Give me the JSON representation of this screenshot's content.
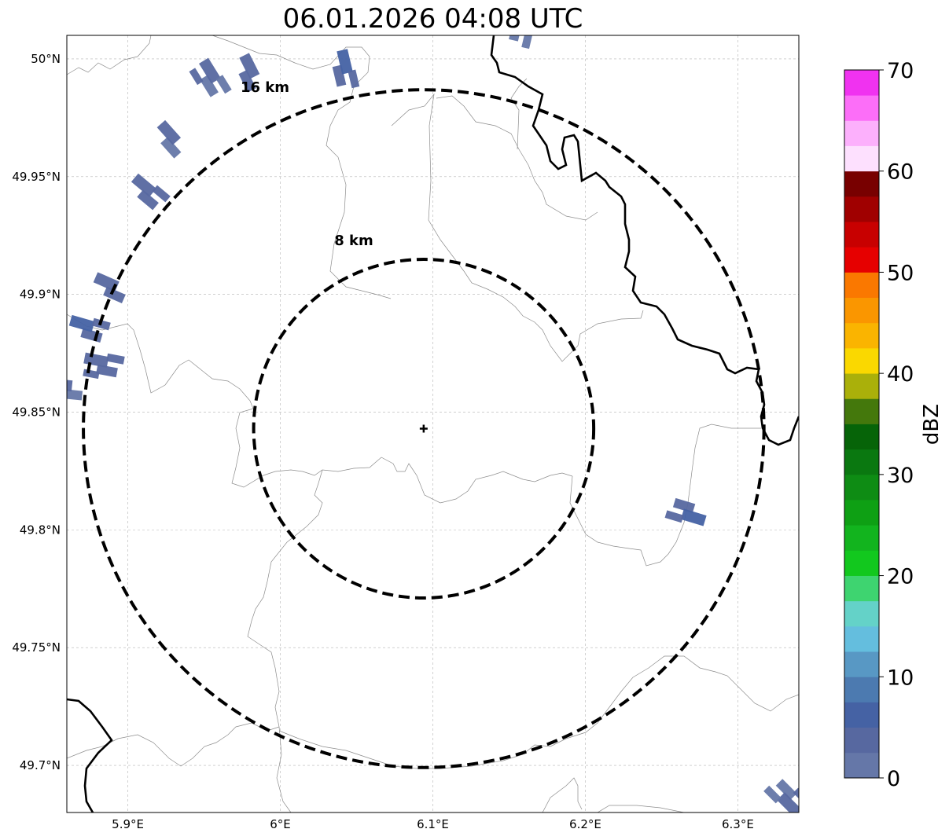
{
  "title": "06.01.2026 04:08 UTC",
  "map": {
    "lon_range": [
      5.86,
      6.34
    ],
    "lat_range": [
      49.68,
      50.01
    ],
    "lon_ticks": [
      {
        "value": 5.9,
        "label": "5.9°E"
      },
      {
        "value": 6.0,
        "label": "6°E"
      },
      {
        "value": 6.1,
        "label": "6.1°E"
      },
      {
        "value": 6.2,
        "label": "6.2°E"
      },
      {
        "value": 6.3,
        "label": "6.3°E"
      }
    ],
    "lat_ticks": [
      {
        "value": 50.0,
        "label": "50°N"
      },
      {
        "value": 49.95,
        "label": "49.95°N"
      },
      {
        "value": 49.9,
        "label": "49.9°N"
      },
      {
        "value": 49.85,
        "label": "49.85°N"
      },
      {
        "value": 49.8,
        "label": "49.8°N"
      },
      {
        "value": 49.75,
        "label": "49.75°N"
      },
      {
        "value": 49.7,
        "label": "49.7°N"
      }
    ],
    "center": {
      "lon": 6.094,
      "lat": 49.843
    },
    "range_rings": [
      {
        "label": "8 km",
        "radius_lat_deg": 0.0719
      },
      {
        "label": "16 km",
        "radius_lat_deg": 0.1439
      }
    ],
    "gridlines": true
  },
  "colorbar": {
    "label": "dBZ",
    "min": 0,
    "max": 70,
    "tick_labels": [
      "0",
      "10",
      "20",
      "30",
      "40",
      "50",
      "60",
      "70"
    ],
    "colors": [
      "#6577a8",
      "#5768a0",
      "#4562a4",
      "#4c7ab0",
      "#5898c4",
      "#64bede",
      "#64d2c8",
      "#3ed470",
      "#12c81e",
      "#12b41e",
      "#0ea014",
      "#0e8c14",
      "#0a7810",
      "#066408",
      "#44780c",
      "#aab00a",
      "#fad800",
      "#fab400",
      "#fa9600",
      "#fa7800",
      "#e60000",
      "#c80000",
      "#a00000",
      "#780000",
      "#fde0fe",
      "#fcb0fc",
      "#fc6ef8",
      "#f032f0"
    ]
  },
  "echoes": [
    {
      "lon": 5.93,
      "lat": 49.962,
      "dbz": 2
    },
    {
      "lon": 5.915,
      "lat": 49.94,
      "dbz": 3
    },
    {
      "lon": 5.955,
      "lat": 49.988,
      "dbz": 2
    },
    {
      "lon": 5.98,
      "lat": 49.99,
      "dbz": 3
    },
    {
      "lon": 6.04,
      "lat": 49.992,
      "dbz": 4
    },
    {
      "lon": 6.155,
      "lat": 50.011,
      "dbz": 2
    },
    {
      "lon": 5.893,
      "lat": 49.9,
      "dbz": 3
    },
    {
      "lon": 5.878,
      "lat": 49.883,
      "dbz": 4
    },
    {
      "lon": 5.888,
      "lat": 49.868,
      "dbz": 3
    },
    {
      "lon": 5.865,
      "lat": 49.858,
      "dbz": 2
    },
    {
      "lon": 6.263,
      "lat": 49.81,
      "dbz": 4
    },
    {
      "lon": 6.33,
      "lat": 49.69,
      "dbz": 2
    }
  ]
}
